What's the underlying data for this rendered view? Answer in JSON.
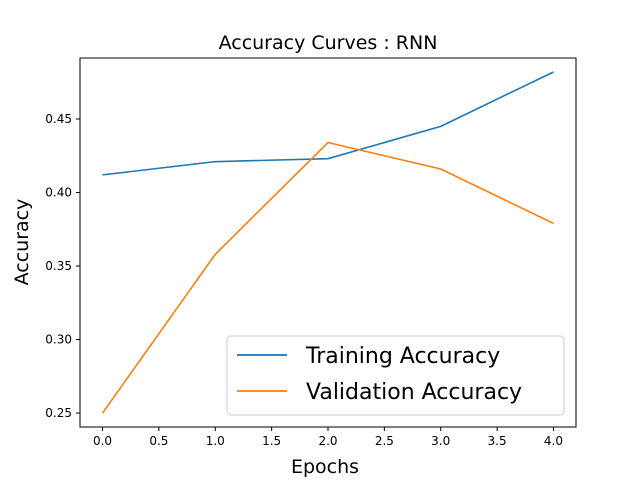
{
  "chart_data": {
    "type": "line",
    "title": "Accuracy Curves : RNN",
    "xlabel": "Epochs",
    "ylabel": "Accuracy",
    "xlim": [
      -0.2,
      4.2
    ],
    "ylim": [
      0.2405,
      0.4915
    ],
    "xticks": [
      0.0,
      0.5,
      1.0,
      1.5,
      2.0,
      2.5,
      3.0,
      3.5,
      4.0
    ],
    "xtick_labels": [
      "0.0",
      "0.5",
      "1.0",
      "1.5",
      "2.0",
      "2.5",
      "3.0",
      "3.5",
      "4.0"
    ],
    "yticks": [
      0.25,
      0.3,
      0.35,
      0.4,
      0.45
    ],
    "ytick_labels": [
      "0.25",
      "0.30",
      "0.35",
      "0.40",
      "0.45"
    ],
    "x": [
      0,
      1,
      2,
      3,
      4
    ],
    "series": [
      {
        "name": "Training Accuracy",
        "values": [
          0.412,
          0.421,
          0.423,
          0.445,
          0.482
        ],
        "color": "#1f77b4"
      },
      {
        "name": "Validation Accuracy",
        "values": [
          0.25,
          0.358,
          0.434,
          0.416,
          0.379
        ],
        "color": "#ff7f0e"
      }
    ],
    "grid": false,
    "legend_position": "lower-right"
  }
}
